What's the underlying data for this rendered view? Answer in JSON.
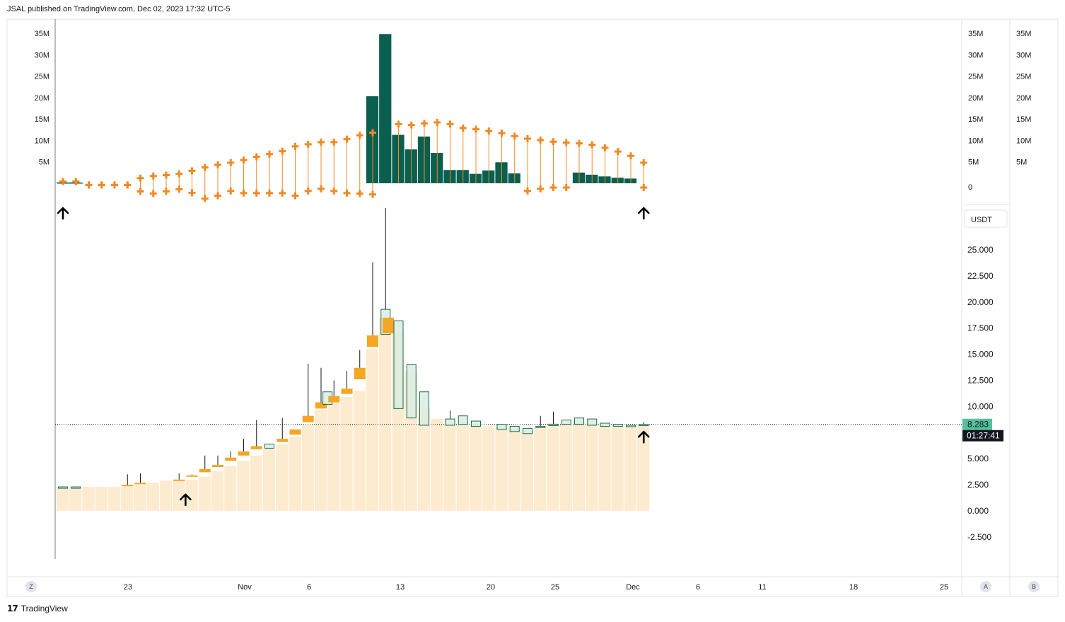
{
  "header": {
    "published": "JSAL published on TradingView.com, Dec 02, 2023 17:32 UTC-5"
  },
  "footer": {
    "brand": "TradingView",
    "logo": "17"
  },
  "axis_buttons": {
    "left": "Z",
    "right_a": "A",
    "right_b": "B"
  },
  "colors": {
    "volume_bar": "#0b5f4f",
    "marker": "#f08a24",
    "area_fill": "#fdebd0",
    "orange_candle": "#f5a623",
    "green_candle_fill": "#d9efe3",
    "green_candle_border": "#1e6b52",
    "price_badge": "#56bf9c",
    "timer_badge": "#131722"
  },
  "chart_data": [
    {
      "type": "bar",
      "panel": "volume",
      "y_ticks": [
        "35M",
        "30M",
        "25M",
        "20M",
        "15M",
        "10M",
        "5M",
        "0"
      ],
      "y_right_ticks_a": [
        "35M",
        "30M",
        "25M",
        "20M",
        "15M",
        "10M",
        "5M",
        "0"
      ],
      "y_right_ticks_b": [
        "35M",
        "30M",
        "25M",
        "20M",
        "15M",
        "10M",
        "5M"
      ],
      "ylim": [
        0,
        35
      ],
      "bars": [
        {
          "i": 0,
          "v": 0.2
        },
        {
          "i": 1,
          "v": 0.2
        },
        {
          "i": 24,
          "v": 20.3
        },
        {
          "i": 25,
          "v": 34.8
        },
        {
          "i": 26,
          "v": 11.3
        },
        {
          "i": 27,
          "v": 7.9
        },
        {
          "i": 28,
          "v": 10.9
        },
        {
          "i": 29,
          "v": 7.1
        },
        {
          "i": 30,
          "v": 3.1
        },
        {
          "i": 31,
          "v": 3.1
        },
        {
          "i": 32,
          "v": 2.2
        },
        {
          "i": 33,
          "v": 3.0
        },
        {
          "i": 34,
          "v": 4.9
        },
        {
          "i": 35,
          "v": 2.3
        },
        {
          "i": 40,
          "v": 2.5
        },
        {
          "i": 41,
          "v": 2.0
        },
        {
          "i": 42,
          "v": 1.6
        },
        {
          "i": 43,
          "v": 1.3
        },
        {
          "i": 44,
          "v": 1.1
        }
      ],
      "upper_band": [
        0.4,
        0.4,
        -0.4,
        -0.4,
        -0.4,
        -0.4,
        1.2,
        1.7,
        1.9,
        2.2,
        2.9,
        3.7,
        4.3,
        4.8,
        5.4,
        6.2,
        6.8,
        7.5,
        8.6,
        9.1,
        9.6,
        9.6,
        10.3,
        11.2,
        11.8,
        null,
        13.8,
        13.6,
        14.0,
        14.2,
        13.8,
        12.9,
        12.6,
        12.2,
        11.7,
        11.0,
        10.4,
        10.1,
        9.7,
        9.5,
        9.3,
        9.0,
        8.3,
        7.4,
        6.4,
        4.8
      ],
      "lower_band": [
        0.4,
        0.4,
        -0.4,
        -0.4,
        -0.4,
        -0.4,
        -1.9,
        -2.4,
        -1.9,
        -1.4,
        -2.2,
        -3.6,
        -2.9,
        -1.8,
        -2.3,
        -2.3,
        -2.3,
        -2.3,
        -2.9,
        -1.8,
        -1.3,
        -1.8,
        -2.3,
        -2.4,
        -2.6,
        null,
        null,
        null,
        null,
        null,
        null,
        null,
        null,
        null,
        null,
        null,
        -1.8,
        -1.3,
        -1.0,
        -1.0,
        null,
        null,
        null,
        null,
        null,
        -1.0
      ]
    },
    {
      "type": "candlestick",
      "panel": "price",
      "currency": "USDT",
      "y_ticks": [
        "25.000",
        "22.500",
        "20.000",
        "17.500",
        "15.000",
        "12.500",
        "10.000",
        "7.500",
        "5.000",
        "2.500",
        "0.000",
        "-2.500"
      ],
      "ylim": [
        -2.5,
        25
      ],
      "last_price": "8.283",
      "countdown": "01:27:41",
      "x_ticks": [
        "23",
        "Nov",
        "6",
        "13",
        "20",
        "25",
        "Dec",
        "6",
        "11",
        "18",
        "25"
      ],
      "area_level": [
        2.3,
        2.3,
        2.3,
        2.3,
        2.3,
        2.4,
        2.6,
        2.7,
        2.9,
        2.9,
        3.0,
        3.3,
        3.8,
        4.3,
        4.8,
        5.3,
        5.9,
        6.4,
        7.1,
        8.2,
        9.7,
        10.4,
        10.9,
        11.5,
        15.5,
        18.5,
        17.0,
        13.4,
        9.8,
        8.8,
        8.3,
        8.2,
        8.2,
        8.1,
        8.0,
        7.9,
        7.6,
        8.0,
        8.4,
        8.3,
        8.5,
        8.3,
        8.1,
        8.1,
        8.1,
        8.2
      ],
      "candles": [
        {
          "i": 0,
          "o": 2.3,
          "c": 2.3,
          "h": 2.3,
          "l": 2.3,
          "color": "green"
        },
        {
          "i": 1,
          "o": 2.3,
          "c": 2.3,
          "h": 2.3,
          "l": 2.3,
          "color": "green"
        },
        {
          "i": 5,
          "o": 2.4,
          "c": 2.5,
          "h": 3.5,
          "l": 2.4,
          "color": "orange"
        },
        {
          "i": 6,
          "o": 2.6,
          "c": 2.7,
          "h": 3.6,
          "l": 2.6,
          "color": "orange"
        },
        {
          "i": 9,
          "o": 2.9,
          "c": 3.0,
          "h": 3.6,
          "l": 2.9,
          "color": "orange"
        },
        {
          "i": 10,
          "o": 3.3,
          "c": 3.4,
          "h": 3.5,
          "l": 3.3,
          "color": "orange"
        },
        {
          "i": 11,
          "o": 3.7,
          "c": 4.0,
          "h": 5.3,
          "l": 3.7,
          "color": "orange"
        },
        {
          "i": 12,
          "o": 4.2,
          "c": 4.4,
          "h": 5.3,
          "l": 4.2,
          "color": "orange"
        },
        {
          "i": 13,
          "o": 4.8,
          "c": 5.1,
          "h": 5.7,
          "l": 4.8,
          "color": "orange"
        },
        {
          "i": 14,
          "o": 5.3,
          "c": 5.7,
          "h": 6.9,
          "l": 5.3,
          "color": "orange"
        },
        {
          "i": 15,
          "o": 5.9,
          "c": 6.2,
          "h": 8.7,
          "l": 5.9,
          "color": "orange"
        },
        {
          "i": 16,
          "o": 6.0,
          "c": 6.4,
          "h": 6.4,
          "l": 6.0,
          "color": "green"
        },
        {
          "i": 17,
          "o": 6.6,
          "c": 6.9,
          "h": 8.9,
          "l": 6.6,
          "color": "orange"
        },
        {
          "i": 18,
          "o": 7.3,
          "c": 7.8,
          "h": 7.8,
          "l": 7.1,
          "color": "orange"
        },
        {
          "i": 19,
          "o": 8.5,
          "c": 9.1,
          "h": 14.1,
          "l": 8.5,
          "color": "orange"
        },
        {
          "i": 20,
          "o": 9.8,
          "c": 10.4,
          "h": 13.7,
          "l": 9.7,
          "color": "orange"
        },
        {
          "i": 20.5,
          "o": 10.2,
          "c": 11.4,
          "h": 11.4,
          "l": 10.2,
          "color": "green"
        },
        {
          "i": 21,
          "o": 10.4,
          "c": 11.0,
          "h": 12.5,
          "l": 10.4,
          "color": "orange"
        },
        {
          "i": 22,
          "o": 11.2,
          "c": 11.7,
          "h": 13.4,
          "l": 11.2,
          "color": "orange"
        },
        {
          "i": 23,
          "o": 12.6,
          "c": 13.7,
          "h": 15.4,
          "l": 12.6,
          "color": "orange"
        },
        {
          "i": 24,
          "o": 15.7,
          "c": 16.8,
          "h": 23.8,
          "l": 15.7,
          "color": "orange"
        },
        {
          "i": 25,
          "o": 16.9,
          "c": 19.3,
          "h": 29.0,
          "l": 16.9,
          "color": "green"
        },
        {
          "i": 25.2,
          "o": 17.0,
          "c": 18.5,
          "h": 18.5,
          "l": 17.0,
          "color": "orange"
        },
        {
          "i": 26,
          "o": 9.8,
          "c": 18.2,
          "h": 18.2,
          "l": 9.8,
          "color": "green"
        },
        {
          "i": 27,
          "o": 8.9,
          "c": 14.0,
          "h": 14.0,
          "l": 8.9,
          "color": "green"
        },
        {
          "i": 28,
          "o": 8.2,
          "c": 11.4,
          "h": 11.4,
          "l": 8.2,
          "color": "green"
        },
        {
          "i": 30,
          "o": 8.2,
          "c": 8.8,
          "h": 9.6,
          "l": 8.1,
          "color": "green"
        },
        {
          "i": 31,
          "o": 8.3,
          "c": 9.1,
          "h": 9.1,
          "l": 8.3,
          "color": "green"
        },
        {
          "i": 32,
          "o": 8.1,
          "c": 8.6,
          "h": 8.6,
          "l": 8.1,
          "color": "green"
        },
        {
          "i": 34,
          "o": 7.8,
          "c": 8.3,
          "h": 8.3,
          "l": 7.8,
          "color": "green"
        },
        {
          "i": 35,
          "o": 7.6,
          "c": 8.1,
          "h": 8.1,
          "l": 7.6,
          "color": "green"
        },
        {
          "i": 36,
          "o": 7.4,
          "c": 7.9,
          "h": 7.9,
          "l": 7.3,
          "color": "green"
        },
        {
          "i": 37,
          "o": 8.0,
          "c": 8.1,
          "h": 9.1,
          "l": 8.0,
          "color": "green"
        },
        {
          "i": 38,
          "o": 8.2,
          "c": 8.3,
          "h": 9.5,
          "l": 8.2,
          "color": "green"
        },
        {
          "i": 39,
          "o": 8.3,
          "c": 8.7,
          "h": 8.7,
          "l": 8.3,
          "color": "green"
        },
        {
          "i": 40,
          "o": 8.3,
          "c": 8.9,
          "h": 8.9,
          "l": 8.3,
          "color": "green"
        },
        {
          "i": 41,
          "o": 8.2,
          "c": 8.8,
          "h": 8.8,
          "l": 8.2,
          "color": "green"
        },
        {
          "i": 42,
          "o": 8.1,
          "c": 8.4,
          "h": 8.4,
          "l": 8.1,
          "color": "green"
        },
        {
          "i": 43,
          "o": 8.1,
          "c": 8.3,
          "h": 8.3,
          "l": 8.1,
          "color": "green"
        },
        {
          "i": 44,
          "o": 8.1,
          "c": 8.2,
          "h": 8.2,
          "l": 8.1,
          "color": "green"
        },
        {
          "i": 45,
          "o": 8.2,
          "c": 8.3,
          "h": 8.5,
          "l": 8.1,
          "color": "green"
        }
      ],
      "arrows": [
        {
          "i": 0,
          "panel": "volume"
        },
        {
          "i": 45,
          "panel": "volume"
        },
        {
          "i": 9.5,
          "panel": "price",
          "v": 1.1
        },
        {
          "i": 45,
          "panel": "price",
          "v": 7.1
        }
      ]
    }
  ]
}
